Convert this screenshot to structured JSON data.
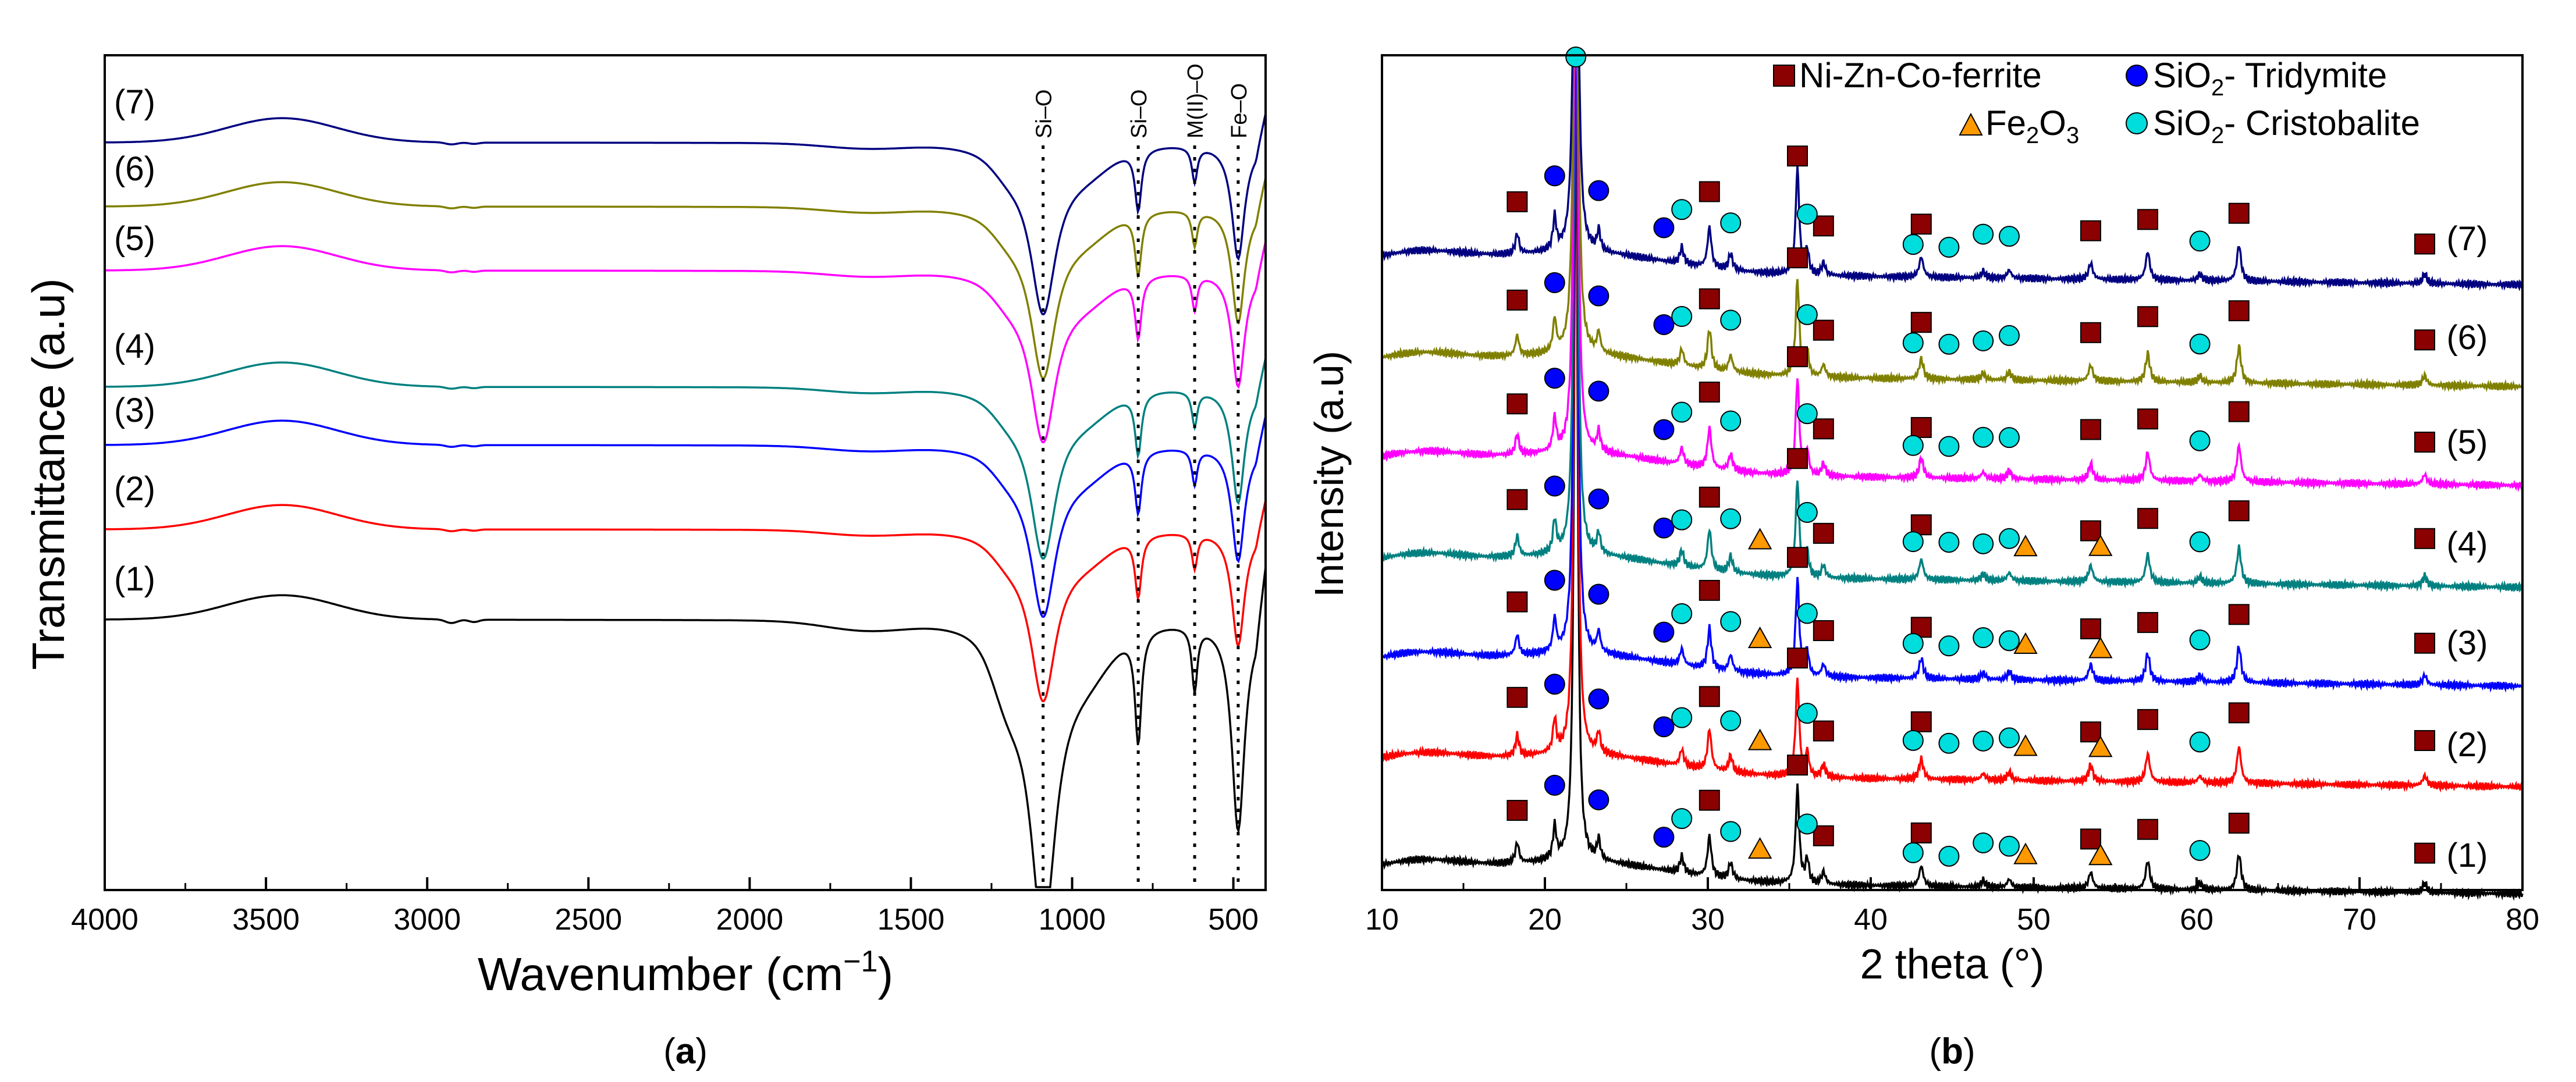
{
  "chart_data": [
    {
      "type": "line",
      "panel": "(a)",
      "panel_letter": "a",
      "xlabel": "Wavenumber (cm",
      "xlabel_sup": "−1",
      "xlabel_close": ")",
      "ylabel": "Transmittance (a.u)",
      "xlim": [
        4000,
        400
      ],
      "x_ticks": [
        4000,
        3500,
        3000,
        2500,
        2000,
        1500,
        1000,
        500
      ],
      "x_tick_labels": [
        "4000",
        "3500",
        "3000",
        "2500",
        "2000",
        "1500",
        "1000",
        "500"
      ],
      "y_ticks": "none",
      "grid": false,
      "band_markers": [
        {
          "label": "Si–O",
          "x": 1090
        },
        {
          "label": "Si–O",
          "x": 795
        },
        {
          "label": "M(II)–O",
          "x": 620
        },
        {
          "label": "Fe–O",
          "x": 485
        }
      ],
      "series": [
        {
          "name": "(1)",
          "color": "#000000",
          "offset": 0
        },
        {
          "name": "(2)",
          "color": "#ff0000",
          "offset": 1
        },
        {
          "name": "(3)",
          "color": "#0000ff",
          "offset": 2
        },
        {
          "name": "(4)",
          "color": "#008080",
          "offset": 3
        },
        {
          "name": "(5)",
          "color": "#ff00ff",
          "offset": 4
        },
        {
          "name": "(6)",
          "color": "#808000",
          "offset": 5
        },
        {
          "name": "(7)",
          "color": "#000080",
          "offset": 6
        }
      ]
    },
    {
      "type": "line",
      "panel": "(b)",
      "panel_letter": "b",
      "xlabel": "2 theta (°)",
      "ylabel": "Intensity (a.u)",
      "xlim": [
        10,
        80
      ],
      "x_ticks": [
        10,
        20,
        30,
        40,
        50,
        60,
        70,
        80
      ],
      "x_tick_labels": [
        "10",
        "20",
        "30",
        "40",
        "50",
        "60",
        "70",
        "80"
      ],
      "y_ticks": "none",
      "grid": false,
      "legend": {
        "position": "top-right",
        "items": [
          {
            "label": "Ni-Zn-Co-ferrite",
            "marker": "square",
            "color": "#8b0000"
          },
          {
            "label": "SiO",
            "label_sub": "2",
            "label_rest": "- Tridymite",
            "marker": "circle",
            "color": "#0000ff"
          },
          {
            "label": "Fe",
            "label_sub": "2",
            "label_rest": "O",
            "label_sub2": "3",
            "marker": "triangle",
            "color": "#ff9900"
          },
          {
            "label": "SiO",
            "label_sub": "2",
            "label_rest": "- Cristobalite",
            "marker": "circle",
            "color": "#00dddd"
          }
        ]
      },
      "peaks": {
        "ferrite": [
          18.3,
          30.1,
          35.5,
          37.1,
          43.1,
          53.5,
          57.0,
          62.6,
          74.0
        ],
        "tridymite": [
          20.6,
          23.3,
          27.3
        ],
        "cristobalite": [
          21.9,
          28.4,
          31.4,
          36.1,
          42.6,
          44.8,
          46.9,
          48.5,
          60.2
        ],
        "fe2o3": [
          33.2,
          49.5,
          54.1
        ]
      },
      "series": [
        {
          "name": "(1)",
          "color": "#000000",
          "offset": 0,
          "has_fe2o3": true
        },
        {
          "name": "(2)",
          "color": "#ff0000",
          "offset": 1,
          "has_fe2o3": true
        },
        {
          "name": "(3)",
          "color": "#0000ff",
          "offset": 2,
          "has_fe2o3": true
        },
        {
          "name": "(4)",
          "color": "#008080",
          "offset": 3,
          "has_fe2o3": true
        },
        {
          "name": "(5)",
          "color": "#ff00ff",
          "offset": 4,
          "has_fe2o3": false
        },
        {
          "name": "(6)",
          "color": "#808000",
          "offset": 5,
          "has_fe2o3": false
        },
        {
          "name": "(7)",
          "color": "#000080",
          "offset": 6,
          "has_fe2o3": false
        }
      ]
    }
  ]
}
